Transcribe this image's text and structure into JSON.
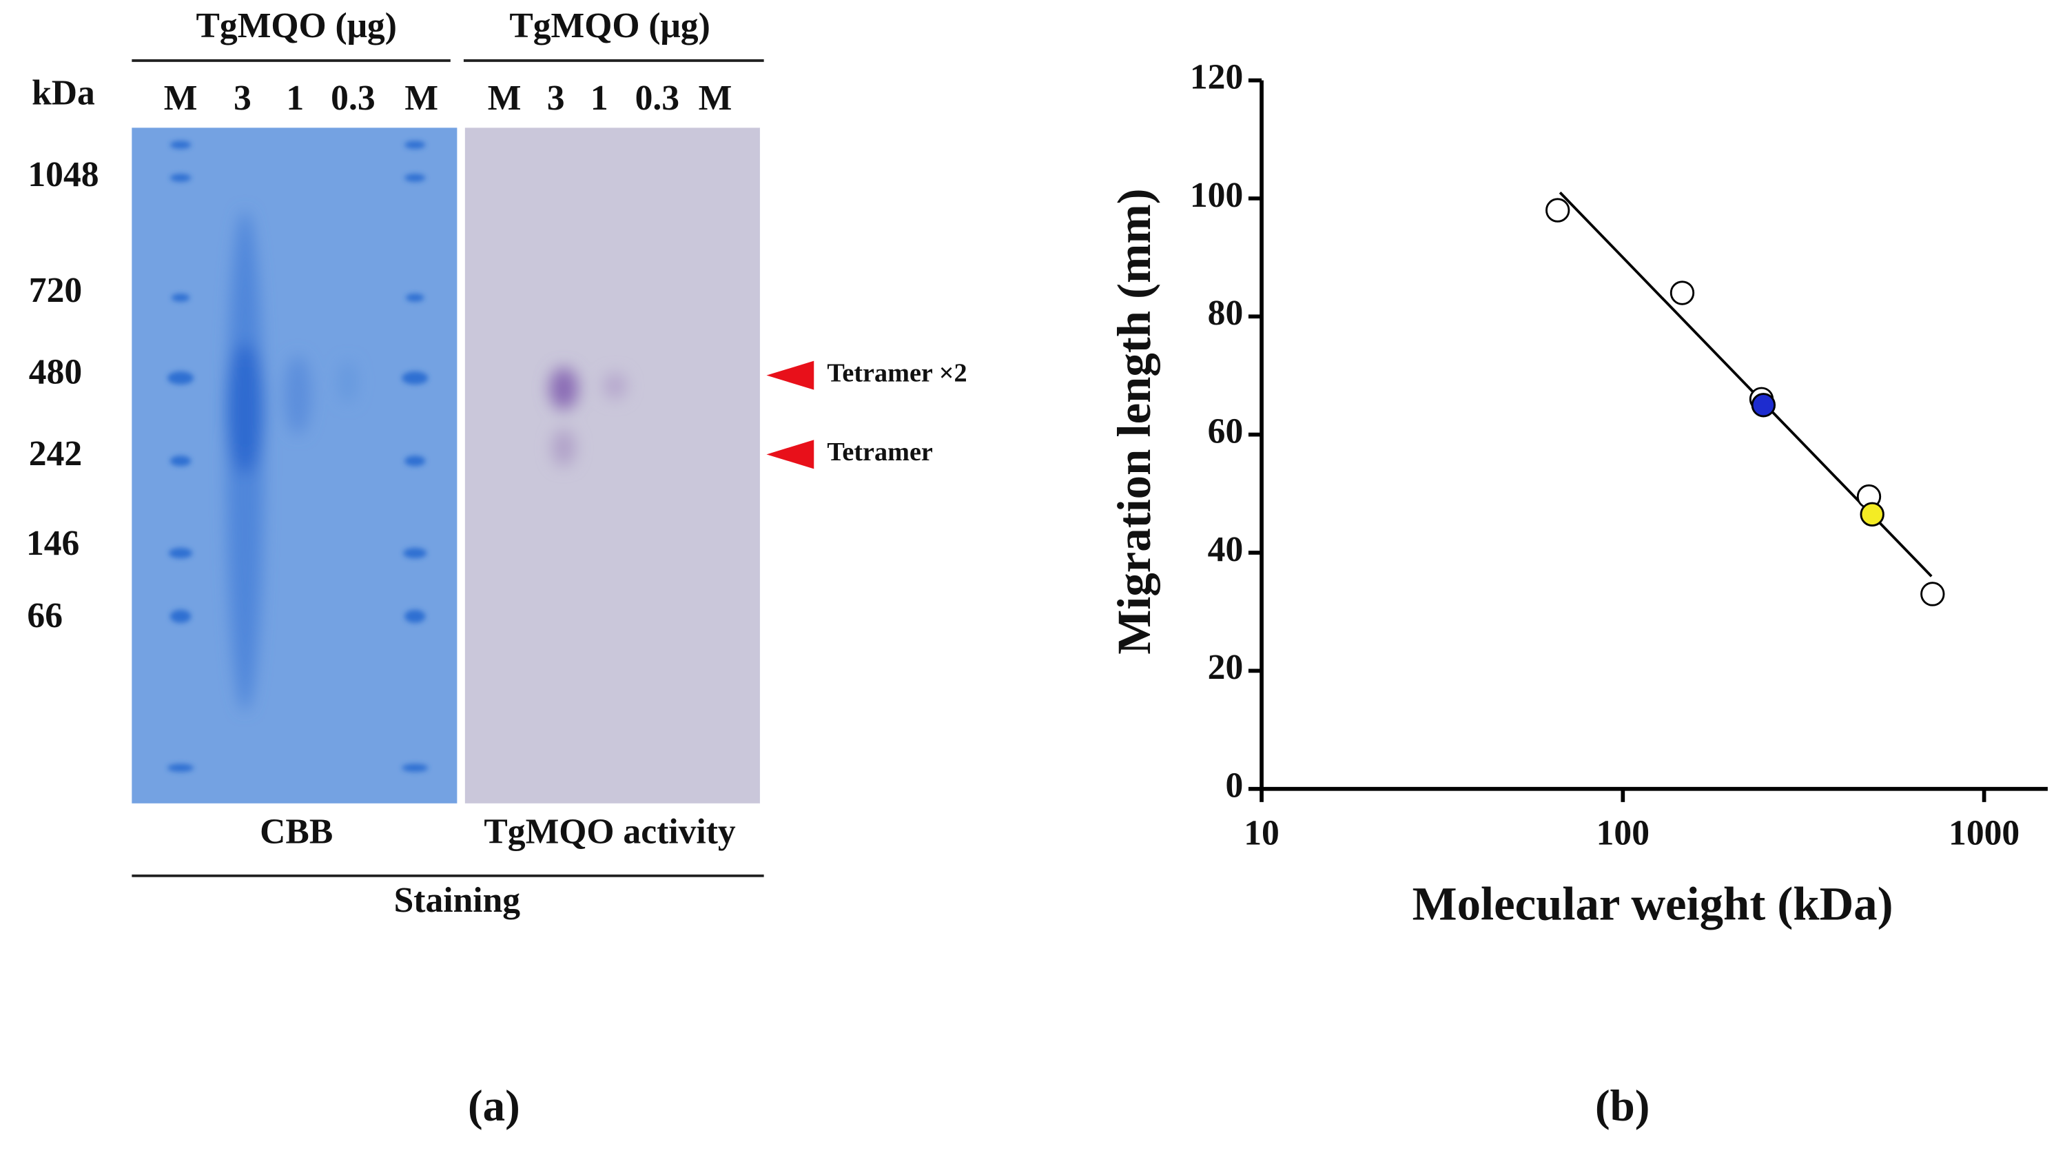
{
  "gel": {
    "group_headers": [
      "TgMQO (μg)",
      "TgMQO (μg)"
    ],
    "unit": "kDa",
    "lanes_cbb": [
      "M",
      "3",
      "1",
      "0.3",
      "M"
    ],
    "lanes_activity": [
      "M",
      "3",
      "1",
      "0.3",
      "M"
    ],
    "markers": [
      "1048",
      "720",
      "480",
      "242",
      "146",
      "66"
    ],
    "arrows": [
      "Tetramer ×2",
      "Tetramer"
    ],
    "stains": [
      "CBB",
      "TgMQO activity"
    ],
    "stain_group": "Staining",
    "panel_label": "(a)"
  },
  "chart_data": {
    "type": "scatter",
    "panel_label": "(b)",
    "x_label": "Molecular weight (kDa)",
    "y_label": "Migration length (mm)",
    "x_scale": "log",
    "xlim": [
      10,
      1500
    ],
    "xticks": [
      10,
      100,
      1000
    ],
    "ylim": [
      0,
      120
    ],
    "yticks": [
      0,
      20,
      40,
      60,
      80,
      100,
      120
    ],
    "series": [
      {
        "color": "#ffffff",
        "x": [
          66,
          146,
          242,
          480,
          720
        ],
        "values": [
          98,
          84,
          66,
          49.5,
          33
        ]
      },
      {
        "color": "#1d2ccf",
        "x": [
          245
        ],
        "values": [
          65
        ]
      },
      {
        "color": "#f4ec24",
        "x": [
          490
        ],
        "values": [
          46.5
        ]
      },
      {
        "type": "line",
        "color": "#000000",
        "x": [
          67,
          715
        ],
        "values": [
          101,
          36
        ]
      }
    ]
  }
}
